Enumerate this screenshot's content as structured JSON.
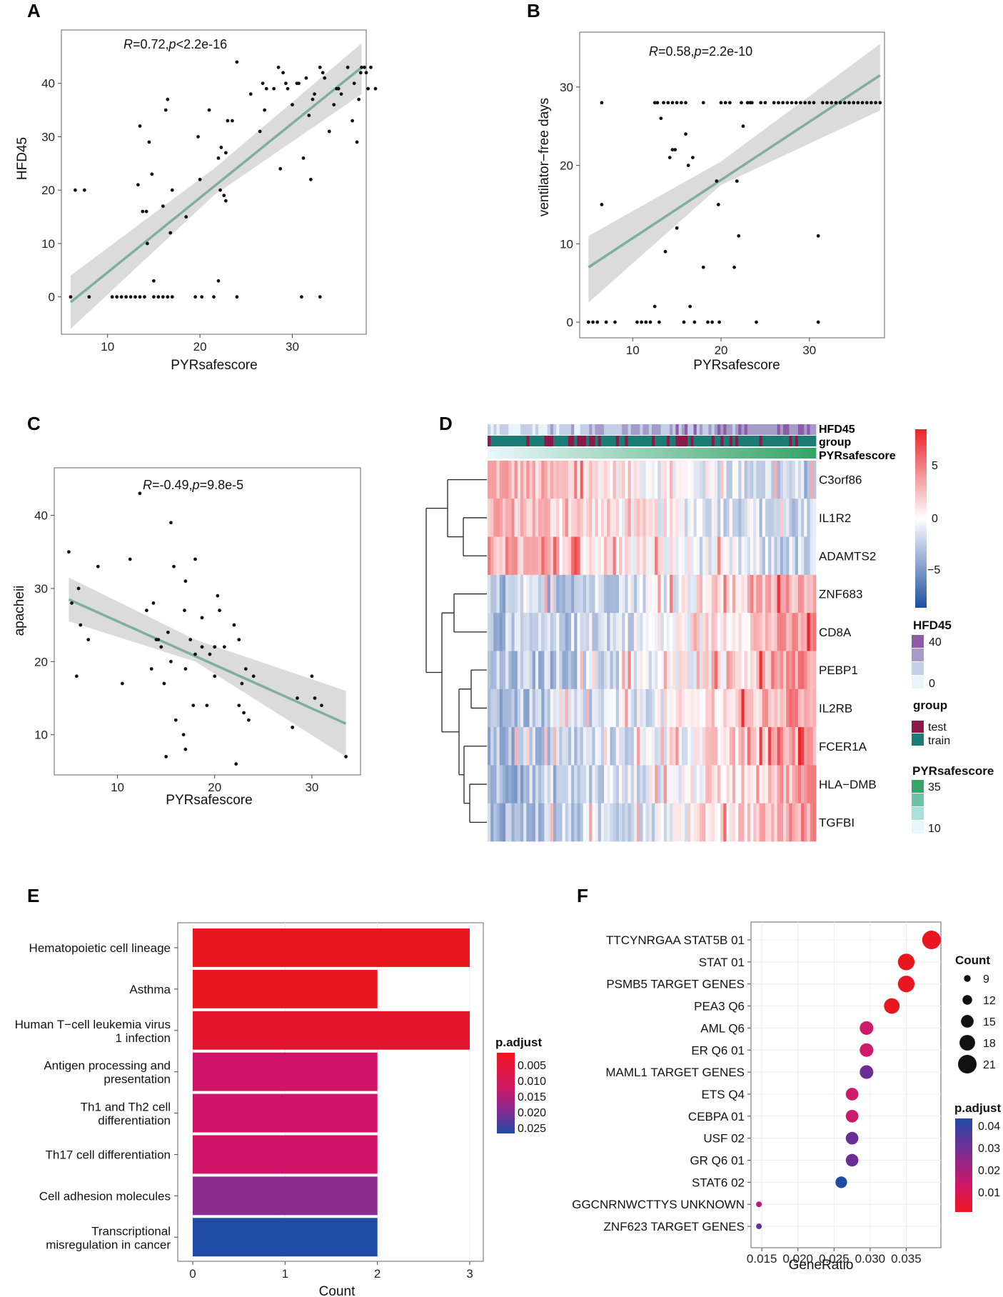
{
  "panels": {
    "A": "A",
    "B": "B",
    "C": "C",
    "D": "D",
    "E": "E",
    "F": "F"
  },
  "chart_data": [
    {
      "id": "A",
      "type": "scatter",
      "xlabel": "PYRsafescore",
      "ylabel": "HFD45",
      "annotation": {
        "r_label": "R",
        "r_value": "=0.72,",
        "p_label": "p",
        "p_value": "<2.2e-16"
      },
      "xlim": [
        5,
        38
      ],
      "ylim": [
        -7,
        50
      ],
      "xticks": [
        10,
        20,
        30
      ],
      "yticks": [
        0,
        10,
        20,
        30,
        40
      ],
      "fit": {
        "x": [
          6,
          37.5
        ],
        "y": [
          -1,
          43
        ],
        "band": [
          [
            6,
            -6,
            4
          ],
          [
            21.5,
            19,
            24
          ],
          [
            37.5,
            38,
            47.5
          ]
        ]
      },
      "points": [
        [
          6,
          0
        ],
        [
          6.5,
          20
        ],
        [
          7.5,
          20
        ],
        [
          8,
          0
        ],
        [
          10.5,
          0
        ],
        [
          11,
          0
        ],
        [
          11.5,
          0
        ],
        [
          12,
          0
        ],
        [
          12.5,
          0
        ],
        [
          13,
          0
        ],
        [
          13.3,
          21
        ],
        [
          13.5,
          32
        ],
        [
          13.5,
          0
        ],
        [
          13.8,
          16
        ],
        [
          14,
          0
        ],
        [
          14.2,
          16
        ],
        [
          14.5,
          29
        ],
        [
          14.3,
          10
        ],
        [
          14.8,
          23
        ],
        [
          15,
          3
        ],
        [
          15,
          0
        ],
        [
          15.5,
          0
        ],
        [
          16,
          0
        ],
        [
          16,
          17
        ],
        [
          16.3,
          35
        ],
        [
          16.5,
          37
        ],
        [
          16.5,
          0
        ],
        [
          16.8,
          12
        ],
        [
          17,
          20
        ],
        [
          17,
          0
        ],
        [
          18.5,
          15
        ],
        [
          19.5,
          0
        ],
        [
          19.8,
          30
        ],
        [
          20,
          22
        ],
        [
          20.2,
          0
        ],
        [
          21,
          35
        ],
        [
          21.5,
          0
        ],
        [
          22,
          3
        ],
        [
          22,
          26
        ],
        [
          22.2,
          20
        ],
        [
          22.3,
          28
        ],
        [
          22.6,
          19
        ],
        [
          22.8,
          18
        ],
        [
          23,
          33
        ],
        [
          22.8,
          27
        ],
        [
          23.5,
          33
        ],
        [
          24,
          0
        ],
        [
          24,
          44
        ],
        [
          25.5,
          38
        ],
        [
          26.5,
          31
        ],
        [
          26.8,
          40
        ],
        [
          27,
          35
        ],
        [
          27.2,
          39
        ],
        [
          28,
          39
        ],
        [
          28.5,
          43
        ],
        [
          28.7,
          24
        ],
        [
          29,
          42
        ],
        [
          29.3,
          40
        ],
        [
          29.5,
          39
        ],
        [
          30,
          36
        ],
        [
          30.5,
          40
        ],
        [
          30.7,
          40
        ],
        [
          31,
          0
        ],
        [
          31.2,
          26
        ],
        [
          31.5,
          41
        ],
        [
          31.8,
          34
        ],
        [
          32,
          22
        ],
        [
          32.2,
          37
        ],
        [
          32.4,
          38
        ],
        [
          33,
          0
        ],
        [
          33,
          43
        ],
        [
          33.3,
          42
        ],
        [
          33.5,
          41
        ],
        [
          34,
          31
        ],
        [
          34.5,
          36
        ],
        [
          34.8,
          39
        ],
        [
          35,
          39
        ],
        [
          35.3,
          38
        ],
        [
          36,
          43
        ],
        [
          36.5,
          33
        ],
        [
          36.7,
          40
        ],
        [
          37,
          29
        ],
        [
          37.2,
          37
        ],
        [
          37.4,
          42
        ],
        [
          37.5,
          43
        ],
        [
          37.8,
          43
        ],
        [
          38,
          42
        ],
        [
          38.2,
          39
        ],
        [
          38.5,
          43
        ],
        [
          39,
          39
        ]
      ]
    },
    {
      "id": "B",
      "type": "scatter",
      "xlabel": "PYRsafescore",
      "ylabel": "ventilator−free days",
      "annotation": {
        "r_label": "R",
        "r_value": "=0.58,",
        "p_label": "p",
        "p_value": "=2.2e-10"
      },
      "xlim": [
        4,
        38.5
      ],
      "ylim": [
        -2,
        37
      ],
      "xticks": [
        10,
        20,
        30
      ],
      "yticks": [
        0,
        10,
        20,
        30
      ],
      "fit": {
        "x": [
          5,
          38
        ],
        "y": [
          7,
          31.5
        ],
        "band": [
          [
            5,
            2.5,
            11
          ],
          [
            20,
            17.5,
            20.5
          ],
          [
            38,
            27,
            35.5
          ]
        ]
      },
      "points": [
        [
          5,
          0
        ],
        [
          5.5,
          0
        ],
        [
          6,
          0
        ],
        [
          6.5,
          15
        ],
        [
          6.5,
          28
        ],
        [
          7,
          0
        ],
        [
          8,
          0
        ],
        [
          10.5,
          0
        ],
        [
          11,
          0
        ],
        [
          11.5,
          0
        ],
        [
          12,
          0
        ],
        [
          12.5,
          2
        ],
        [
          12.5,
          28
        ],
        [
          12.8,
          28
        ],
        [
          13,
          0
        ],
        [
          13.2,
          26
        ],
        [
          13.5,
          28
        ],
        [
          13.7,
          9
        ],
        [
          14,
          28
        ],
        [
          14.2,
          21
        ],
        [
          14.5,
          22
        ],
        [
          14.5,
          28
        ],
        [
          14.8,
          22
        ],
        [
          15,
          28
        ],
        [
          15,
          12
        ],
        [
          15.5,
          28
        ],
        [
          15.8,
          0
        ],
        [
          16,
          28
        ],
        [
          16,
          24
        ],
        [
          16.3,
          20
        ],
        [
          16.5,
          2
        ],
        [
          16.8,
          21
        ],
        [
          17,
          0
        ],
        [
          18,
          28
        ],
        [
          18,
          7
        ],
        [
          18.5,
          0
        ],
        [
          19,
          0
        ],
        [
          19.5,
          18
        ],
        [
          19.7,
          15
        ],
        [
          19.8,
          0
        ],
        [
          20,
          28
        ],
        [
          20.5,
          28
        ],
        [
          21,
          28
        ],
        [
          21.5,
          7
        ],
        [
          21.8,
          18
        ],
        [
          22,
          11
        ],
        [
          22.3,
          28
        ],
        [
          22.5,
          25
        ],
        [
          23,
          28
        ],
        [
          23.3,
          28
        ],
        [
          23.5,
          28
        ],
        [
          24,
          0
        ],
        [
          24.5,
          28
        ],
        [
          25,
          28
        ],
        [
          26,
          28
        ],
        [
          26.5,
          28
        ],
        [
          27,
          28
        ],
        [
          27.5,
          28
        ],
        [
          28,
          28
        ],
        [
          28.5,
          28
        ],
        [
          29,
          28
        ],
        [
          29.5,
          28
        ],
        [
          30,
          28
        ],
        [
          30.5,
          28
        ],
        [
          31,
          0
        ],
        [
          31,
          11
        ],
        [
          31.5,
          28
        ],
        [
          32,
          28
        ],
        [
          32.5,
          28
        ],
        [
          33,
          28
        ],
        [
          33.5,
          28
        ],
        [
          34,
          28
        ],
        [
          34.5,
          28
        ],
        [
          35,
          28
        ],
        [
          35.5,
          28
        ],
        [
          36,
          28
        ],
        [
          36.5,
          28
        ],
        [
          37,
          28
        ],
        [
          37.5,
          28
        ],
        [
          38,
          28
        ]
      ]
    },
    {
      "id": "C",
      "type": "scatter",
      "xlabel": "PYRsafescore",
      "ylabel": "apacheii",
      "annotation": {
        "r_label": "R",
        "r_value": "=-0.49,",
        "p_label": "p",
        "p_value": "=9.8e-5"
      },
      "xlim": [
        3.5,
        35
      ],
      "ylim": [
        4.5,
        46.5
      ],
      "xticks": [
        10,
        20,
        30
      ],
      "yticks": [
        10,
        20,
        30,
        40
      ],
      "fit": {
        "x": [
          5,
          33.5
        ],
        "y": [
          28.5,
          11.5
        ],
        "band": [
          [
            5,
            25.5,
            31.5
          ],
          [
            18,
            20,
            23
          ],
          [
            33.5,
            7,
            16
          ]
        ]
      },
      "points": [
        [
          5,
          35
        ],
        [
          5.3,
          28
        ],
        [
          5.8,
          18
        ],
        [
          6,
          30
        ],
        [
          6.2,
          25
        ],
        [
          7,
          23
        ],
        [
          8,
          33
        ],
        [
          10.5,
          17
        ],
        [
          11.3,
          34
        ],
        [
          12.3,
          43
        ],
        [
          13,
          27
        ],
        [
          13.5,
          19
        ],
        [
          13.7,
          28
        ],
        [
          14,
          23
        ],
        [
          14.2,
          23
        ],
        [
          14.5,
          22
        ],
        [
          14.8,
          17
        ],
        [
          15,
          7
        ],
        [
          15.2,
          24
        ],
        [
          15.5,
          20
        ],
        [
          15.5,
          39
        ],
        [
          15.8,
          33
        ],
        [
          16,
          12
        ],
        [
          16.8,
          10
        ],
        [
          17,
          8
        ],
        [
          16.9,
          27
        ],
        [
          17,
          31
        ],
        [
          17,
          19
        ],
        [
          17.5,
          23
        ],
        [
          17.8,
          14
        ],
        [
          18,
          21
        ],
        [
          18,
          34
        ],
        [
          18.7,
          22
        ],
        [
          18.7,
          26
        ],
        [
          19.2,
          14
        ],
        [
          19.5,
          21
        ],
        [
          20,
          22
        ],
        [
          20,
          18
        ],
        [
          20.3,
          29
        ],
        [
          20.5,
          27
        ],
        [
          21,
          22
        ],
        [
          22,
          25
        ],
        [
          22.2,
          6
        ],
        [
          22.5,
          14
        ],
        [
          22.5,
          23
        ],
        [
          22.8,
          17
        ],
        [
          23,
          13
        ],
        [
          23.2,
          19
        ],
        [
          23.5,
          12
        ],
        [
          24,
          18
        ],
        [
          28,
          11
        ],
        [
          28.5,
          15
        ],
        [
          30,
          18
        ],
        [
          30.3,
          15
        ],
        [
          31,
          14
        ],
        [
          33.5,
          7
        ]
      ]
    },
    {
      "id": "D",
      "type": "heatmap",
      "rows": [
        "C3orf86",
        "IL1R2",
        "ADAMTS2",
        "ZNF683",
        "CD8A",
        "PEBP1",
        "IL2RB",
        "FCER1A",
        "HLA−DMB",
        "TGFBI"
      ],
      "annotation_tracks": [
        "HFD45",
        "group",
        "PYRsafescore"
      ],
      "color_scale": {
        "ticks": [
          "5",
          "0",
          "−5"
        ],
        "range": [
          -8,
          8
        ]
      },
      "legends": {
        "hfd45": {
          "title": "HFD45",
          "high": "40",
          "low": "0"
        },
        "group": {
          "title": "group",
          "items": [
            "test",
            "train"
          ]
        },
        "pyr": {
          "title": "PYRsafescore",
          "high": "35",
          "low": "10"
        }
      },
      "columns": 110,
      "pattern": "left columns higher for C3orf86/IL1R2/ADAMTS2; right columns higher for ZNF683 through TGFBI"
    },
    {
      "id": "E",
      "type": "bar",
      "orientation": "horizontal",
      "xlabel": "Count",
      "xlim": [
        0,
        3
      ],
      "xticks": [
        0,
        1,
        2,
        3
      ],
      "categories": [
        [
          "Hematopoietic cell lineage"
        ],
        [
          "Asthma"
        ],
        [
          "Human T−cell leukemia virus",
          "1 infection"
        ],
        [
          "Antigen processing and",
          "presentation"
        ],
        [
          "Th1 and Th2 cell",
          "differentiation"
        ],
        [
          "Th17 cell differentiation"
        ],
        [
          "Cell adhesion molecules"
        ],
        [
          "Transcriptional",
          "misregulation in cancer"
        ]
      ],
      "values": [
        3,
        2,
        3,
        2,
        2,
        2,
        2,
        2
      ],
      "colors": [
        "#e8161f",
        "#e8161f",
        "#e3152e",
        "#cf1367",
        "#cf1367",
        "#cf1367",
        "#8b2b8f",
        "#1f4aa6"
      ],
      "legend": {
        "title": "p.adjust",
        "ticks": [
          "0.005",
          "0.010",
          "0.015",
          "0.020",
          "0.025"
        ]
      }
    },
    {
      "id": "F",
      "type": "scatter",
      "subtype": "dotplot",
      "xlabel": "GeneRatio",
      "xlim": [
        0.0135,
        0.0398
      ],
      "xticks": [
        0.015,
        0.02,
        0.025,
        0.03,
        0.035
      ],
      "xticklabels": [
        "0.015",
        "0.020",
        "0.025",
        "0.030",
        "0.035"
      ],
      "categories": [
        "TTCYNRGAA STAT5B 01",
        "STAT 01",
        "PSMB5 TARGET GENES",
        "PEA3 Q6",
        "AML Q6",
        "ER Q6 01",
        "MAML1 TARGET GENES",
        "ETS Q4",
        "CEBPA 01",
        "USF 02",
        "GR Q6 01",
        "STAT6 02",
        "GGCNRNWCTTYS UNKNOWN",
        "ZNF623 TARGET GENES"
      ],
      "generatio": [
        0.0385,
        0.035,
        0.035,
        0.033,
        0.0295,
        0.0295,
        0.0295,
        0.0275,
        0.0275,
        0.0275,
        0.0275,
        0.026,
        0.0146,
        0.0146
      ],
      "count": [
        21,
        19,
        19,
        18,
        16,
        16,
        16,
        15,
        15,
        15,
        15,
        14,
        8,
        8
      ],
      "colors": [
        "#e8161f",
        "#e8161f",
        "#e8161f",
        "#e8161f",
        "#cf1a6a",
        "#cf1a6a",
        "#6a2f95",
        "#cf1a6a",
        "#cf1a6a",
        "#6a2f95",
        "#6a2f95",
        "#1f4aa6",
        "#b5197d",
        "#5d3795"
      ],
      "size_legend": {
        "title": "Count",
        "ticks": [
          "9",
          "12",
          "15",
          "18",
          "21"
        ]
      },
      "color_legend": {
        "title": "p.adjust",
        "ticks": [
          "0.04",
          "0.03",
          "0.02",
          "0.01"
        ]
      }
    }
  ]
}
